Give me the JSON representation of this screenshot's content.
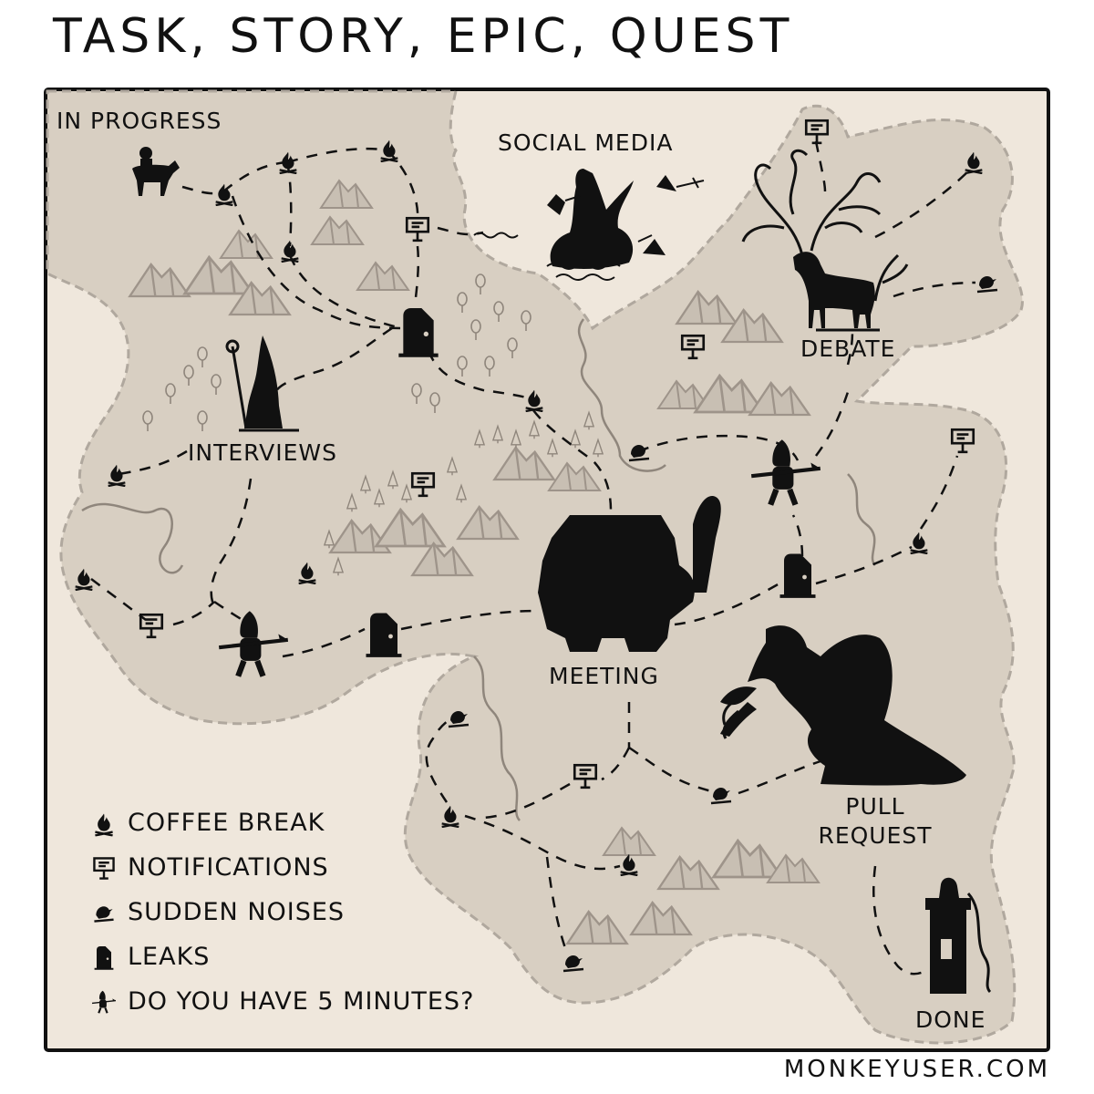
{
  "title": "TASK, STORY, EPIC, QUEST",
  "credit": "MONKEYUSER.COM",
  "colors": {
    "land": "#d8cfc2",
    "sea": "#efe7dc",
    "ink": "#111111",
    "mountain": "#9e948a",
    "frame": "#111111"
  },
  "map": {
    "labels": {
      "start": "IN PROGRESS",
      "social_media": "SOCIAL MEDIA",
      "debate": "DEBATE",
      "interviews": "INTERVIEWS",
      "meeting": "MEETING",
      "pull_request": "PULL\nREQUEST",
      "done": "DONE"
    },
    "scene": {
      "start": "knight riding a horse",
      "social_media": "mermaid on a rock",
      "debate": "stag with huge antlers",
      "interviews": "wizard with a staff",
      "meeting": "ogre with a spiked club",
      "pull_request": "dragon breathing fire",
      "done": "tower with princess and long hair"
    }
  },
  "legend": [
    {
      "icon": "campfire-icon",
      "label": "COFFEE BREAK"
    },
    {
      "icon": "signpost-icon",
      "label": "NOTIFICATIONS"
    },
    {
      "icon": "bird-icon",
      "label": "SUDDEN NOISES"
    },
    {
      "icon": "door-icon",
      "label": "LEAKS"
    },
    {
      "icon": "goblin-icon",
      "label": "DO YOU HAVE 5 MINUTES?"
    }
  ]
}
